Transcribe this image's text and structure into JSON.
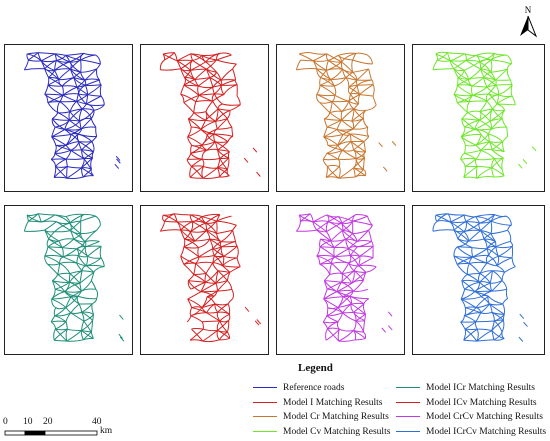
{
  "north_arrow": {
    "label": "N"
  },
  "panels": [
    {
      "id": "reference",
      "color": "#2b2bbf"
    },
    {
      "id": "model-i",
      "color": "#d42020"
    },
    {
      "id": "model-cr",
      "color": "#c8762e"
    },
    {
      "id": "model-cv",
      "color": "#6ee62a"
    },
    {
      "id": "model-icr",
      "color": "#1f8f78"
    },
    {
      "id": "model-icv",
      "color": "#d42020"
    },
    {
      "id": "model-crcv",
      "color": "#c13ae0"
    },
    {
      "id": "model-icrcv",
      "color": "#2f6fd6"
    }
  ],
  "legend": {
    "title": "Legend",
    "items": [
      {
        "label": "Reference roads",
        "color": "#2b2bbf"
      },
      {
        "label": "Model I Matching Results",
        "color": "#d42020"
      },
      {
        "label": "Model Cr Matching Results",
        "color": "#c8762e"
      },
      {
        "label": "Model Cv Matching Results",
        "color": "#6ee62a"
      },
      {
        "label": "Model ICr Matching Results",
        "color": "#1f8f78"
      },
      {
        "label": "Model ICv Matching Results",
        "color": "#d42020"
      },
      {
        "label": "Model CrCv Matching Results",
        "color": "#c13ae0"
      },
      {
        "label": "Model ICrCv Matching Results",
        "color": "#2f6fd6"
      }
    ]
  },
  "scale_bar": {
    "ticks": [
      "0",
      "10",
      "20",
      "40"
    ],
    "unit": "km"
  }
}
